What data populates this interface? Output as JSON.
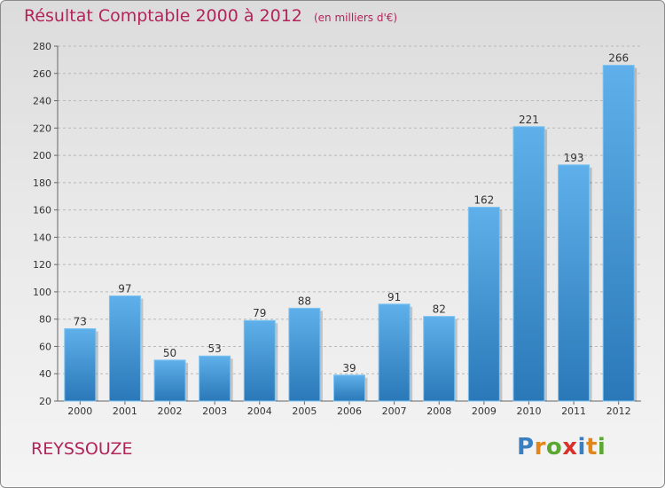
{
  "header": {
    "title": "Résultat Comptable 2000 à 2012",
    "unit": "(en milliers d'€)"
  },
  "footer": {
    "commune": "REYSSOUZE",
    "logo_letters": [
      "P",
      "r",
      "o",
      "x",
      "i",
      "t",
      "i"
    ],
    "logo_colors": [
      "#3a7fc1",
      "#e0861a",
      "#5aa832",
      "#d8322b",
      "#3a7fc1",
      "#e0861a",
      "#5aa832"
    ]
  },
  "colors": {
    "title": "#b3245a",
    "bar_top": "#5fb0ea",
    "bar_bottom": "#2a78b8",
    "grid": "#b8b8b8"
  },
  "chart_data": {
    "type": "bar",
    "title": "Résultat Comptable 2000 à 2012",
    "categories": [
      "2000",
      "2001",
      "2002",
      "2003",
      "2004",
      "2005",
      "2006",
      "2007",
      "2008",
      "2009",
      "2010",
      "2011",
      "2012"
    ],
    "values": [
      73,
      97,
      50,
      53,
      79,
      88,
      39,
      91,
      82,
      162,
      221,
      193,
      266
    ],
    "ylim": [
      20,
      280
    ],
    "yticks": [
      20,
      40,
      60,
      80,
      100,
      120,
      140,
      160,
      180,
      200,
      220,
      240,
      260,
      280
    ],
    "grid": true,
    "xlabel": "",
    "ylabel": ""
  }
}
